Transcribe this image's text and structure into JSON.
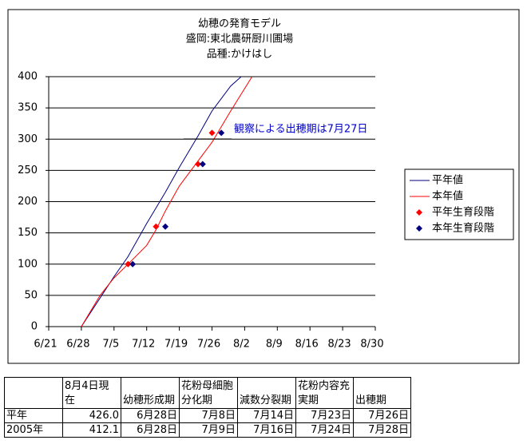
{
  "chart_data": {
    "type": "line",
    "title": [
      "幼穂の発育モデル",
      "盛岡:東北農研厨川圃場",
      "品種:かけはし"
    ],
    "xlim": [
      "6/21",
      "8/30"
    ],
    "xticks": [
      "6/21",
      "6/28",
      "7/5",
      "7/12",
      "7/19",
      "7/26",
      "8/2",
      "8/9",
      "8/16",
      "8/23",
      "8/30"
    ],
    "ylim": [
      0,
      400
    ],
    "yticks": [
      0,
      50,
      100,
      150,
      200,
      250,
      300,
      350,
      400
    ],
    "grid": true,
    "legend": "right",
    "annotation": "観察による出穂期は7月27日",
    "series": [
      {
        "name": "平年値",
        "type": "line",
        "color": "#000080",
        "x": [
          "6/28",
          "7/5",
          "7/8",
          "7/12",
          "7/16",
          "7/19",
          "7/23",
          "7/26",
          "7/30",
          "8/2"
        ],
        "values": [
          0,
          80,
          112,
          165,
          215,
          255,
          305,
          345,
          385,
          405
        ]
      },
      {
        "name": "本年値",
        "type": "line",
        "color": "#ff0000",
        "x": [
          "6/28",
          "7/2",
          "7/5",
          "7/8",
          "7/12",
          "7/14",
          "7/16",
          "7/19",
          "7/23",
          "7/26",
          "7/30",
          "8/4"
        ],
        "values": [
          0,
          50,
          78,
          100,
          130,
          155,
          185,
          225,
          265,
          295,
          345,
          405
        ]
      },
      {
        "name": "平年生育段階",
        "type": "scatter",
        "color": "#ff0000",
        "x": [
          "7/8",
          "7/14",
          "7/23",
          "7/26"
        ],
        "values": [
          100,
          160,
          260,
          310
        ]
      },
      {
        "name": "本年生育段階",
        "type": "scatter",
        "color": "#000080",
        "x": [
          "7/9",
          "7/16",
          "7/24",
          "7/28"
        ],
        "values": [
          100,
          160,
          260,
          310
        ]
      }
    ]
  },
  "table": {
    "header": [
      "",
      "8月4日現在",
      "幼穂形成期",
      "花粉母細胞分化期",
      "減数分裂期",
      "花粉内容充実期",
      "出穂期"
    ],
    "rows": [
      [
        "平年",
        "426.0",
        "6月28日",
        "7月8日",
        "7月14日",
        "7月23日",
        "7月26日"
      ],
      [
        "2005年",
        "412.1",
        "6月28日",
        "7月9日",
        "7月16日",
        "7月24日",
        "7月28日"
      ]
    ]
  }
}
